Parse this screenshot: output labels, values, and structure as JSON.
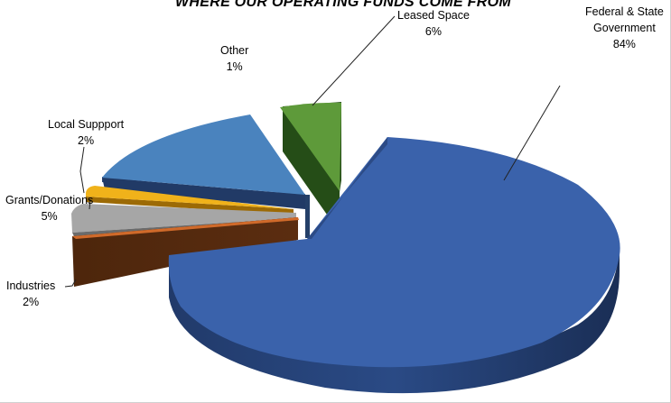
{
  "chart_data": {
    "type": "pie",
    "title": "WHERE OUR OPERATING FUNDS COME FROM",
    "slices": [
      {
        "label": "Federal & State Government",
        "value": 84,
        "value_label": "84%",
        "color": "#3a62ab"
      },
      {
        "label": "Industries",
        "value": 2,
        "value_label": "2%",
        "color": "#6e3612"
      },
      {
        "label": "Grants/Donations",
        "value": 5,
        "value_label": "5%",
        "color": "#a6a6a6"
      },
      {
        "label": "Local Suppport",
        "value": 2,
        "value_label": "2%",
        "color": "#f0b21a"
      },
      {
        "label": "Other",
        "value": 1,
        "value_label": "1%",
        "color": "#4a83be"
      },
      {
        "label": "Leased Space",
        "value": 6,
        "value_label": "6%",
        "color": "#5e9a3a"
      }
    ],
    "style": "3d-exploded",
    "legend": "none"
  }
}
